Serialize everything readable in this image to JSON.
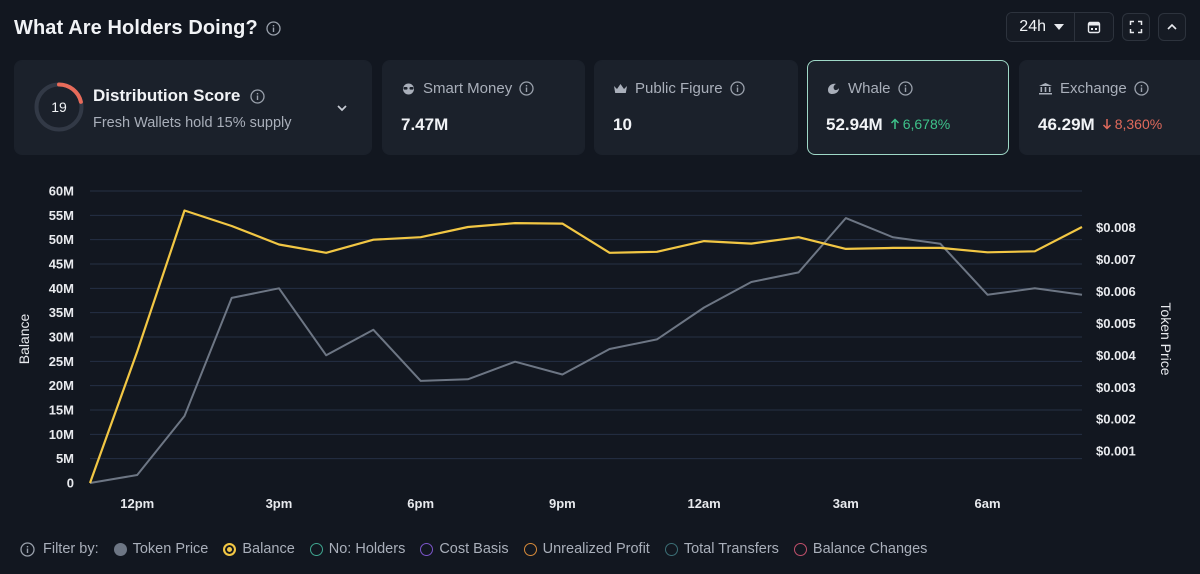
{
  "header": {
    "title": "What Are Holders Doing?",
    "range": "24h"
  },
  "cards": [
    {
      "type": "distribution",
      "score": "19",
      "title": "Distribution Score",
      "subtitle": "Fresh Wallets hold 15% supply"
    },
    {
      "type": "smart",
      "label": "Smart Money",
      "value": "7.47M",
      "icon": "sunglasses-icon"
    },
    {
      "type": "public",
      "label": "Public Figure",
      "value": "10",
      "icon": "crown-icon"
    },
    {
      "type": "whale",
      "label": "Whale",
      "value": "52.94M",
      "delta": "6,678%",
      "delta_dir": "up",
      "icon": "whale-icon",
      "active": true
    },
    {
      "type": "exchange",
      "label": "Exchange",
      "value": "46.29M",
      "delta": "8,360%",
      "delta_dir": "down",
      "icon": "bank-icon"
    }
  ],
  "chart_data": {
    "type": "line",
    "xlabel": "",
    "ylabel": "Balance",
    "y2label": "Token Price",
    "x_ticks": [
      "12pm",
      "3pm",
      "6pm",
      "9pm",
      "12am",
      "3am",
      "6am"
    ],
    "y_ticks": [
      "0",
      "5M",
      "10M",
      "15M",
      "20M",
      "25M",
      "30M",
      "35M",
      "40M",
      "45M",
      "50M",
      "55M",
      "60M"
    ],
    "y2_ticks": [
      "$0.001",
      "$0.002",
      "$0.003",
      "$0.004",
      "$0.005",
      "$0.006",
      "$0.007",
      "$0.008"
    ],
    "ylim": [
      0,
      60000000
    ],
    "y2lim": [
      0,
      0.00915
    ],
    "x": [
      11,
      12,
      13,
      14,
      15,
      16,
      17,
      18,
      19,
      20,
      21,
      22,
      23,
      24,
      25,
      26,
      27,
      28,
      29,
      30,
      31,
      32
    ],
    "series": [
      {
        "name": "Balance",
        "axis": "left",
        "color": "#f2c744",
        "values": [
          0,
          27000000,
          56000000,
          52800000,
          49000000,
          47300000,
          50000000,
          50500000,
          52600000,
          53400000,
          53300000,
          47300000,
          47500000,
          49700000,
          49200000,
          50500000,
          48100000,
          48300000,
          48300000,
          47400000,
          47600000,
          52600000
        ]
      },
      {
        "name": "Token Price",
        "axis": "right",
        "color": "#6d7684",
        "values": [
          0.0,
          0.00025,
          0.0021,
          0.0058,
          0.0061,
          0.004,
          0.0048,
          0.0032,
          0.00325,
          0.0038,
          0.0034,
          0.0042,
          0.0045,
          0.0055,
          0.0063,
          0.0066,
          0.0083,
          0.0077,
          0.0075,
          0.0059,
          0.0061,
          0.0059
        ]
      }
    ],
    "grid": true
  },
  "filters": {
    "label": "Filter by:",
    "items": [
      {
        "label": "Token Price",
        "color": "#6d7684",
        "filled": true
      },
      {
        "label": "Balance",
        "color": "#f2c744",
        "filled": true
      },
      {
        "label": "No: Holders",
        "color": "#3fa58f",
        "filled": false
      },
      {
        "label": "Cost Basis",
        "color": "#7b55c9",
        "filled": false
      },
      {
        "label": "Unrealized Profit",
        "color": "#d68a3a",
        "filled": false
      },
      {
        "label": "Total Transfers",
        "color": "#3c6f76",
        "filled": false
      },
      {
        "label": "Balance Changes",
        "color": "#c0506b",
        "filled": false
      }
    ]
  }
}
